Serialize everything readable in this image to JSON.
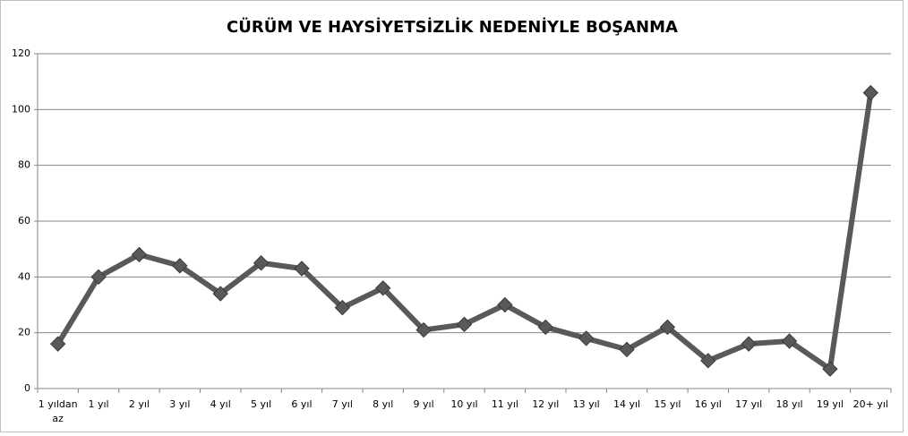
{
  "chart_data": {
    "type": "line",
    "title": "CÜRÜM VE HAYSİYETSİZLİK  NEDENİYLE BOŞANMA",
    "categories": [
      "1 yıldan az",
      "1 yıl",
      "2 yıl",
      "3 yıl",
      "4 yıl",
      "5 yıl",
      "6 yıl",
      "7 yıl",
      "8 yıl",
      "9 yıl",
      "10 yıl",
      "11 yıl",
      "12 yıl",
      "13 yıl",
      "14 yıl",
      "15 yıl",
      "16 yıl",
      "17 yıl",
      "18 yıl",
      "19 yıl",
      "20+ yıl"
    ],
    "values": [
      16,
      40,
      48,
      44,
      34,
      45,
      43,
      29,
      36,
      21,
      23,
      30,
      22,
      18,
      14,
      22,
      10,
      16,
      17,
      7,
      106
    ],
    "color": "#595959",
    "ylim": [
      0,
      120
    ],
    "yticks": [
      0,
      20,
      40,
      60,
      80,
      100,
      120
    ],
    "grid": true
  }
}
